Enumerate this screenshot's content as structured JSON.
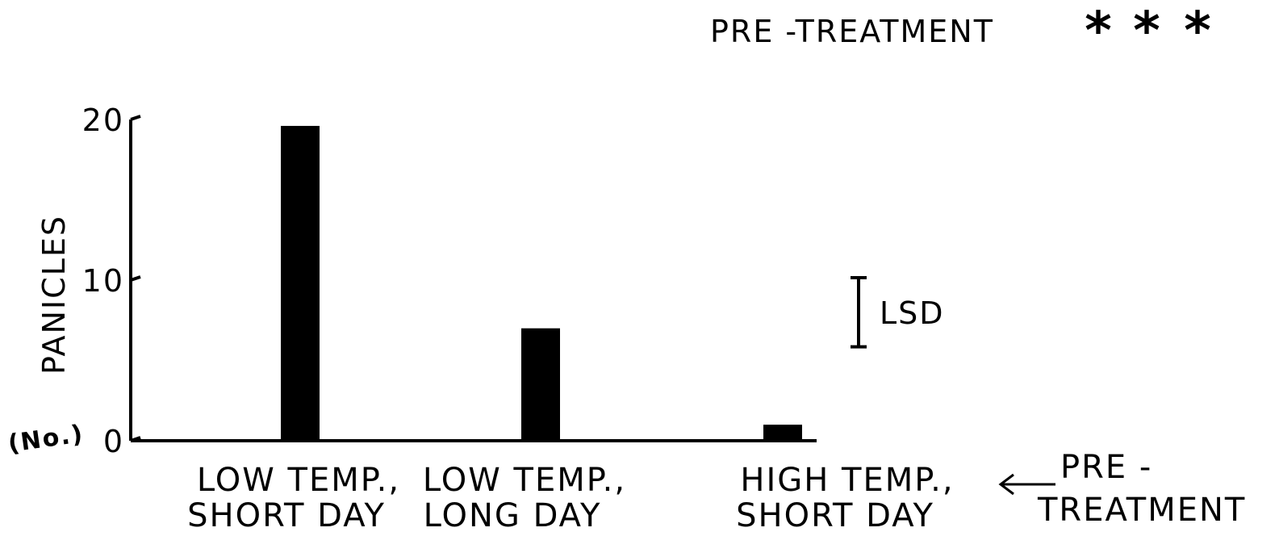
{
  "chart_data": {
    "type": "bar",
    "title": "PRE -TREATMENT",
    "significance": "***",
    "ylabel": "PANICLES",
    "ylabel_unit": "(No.)",
    "yticks": [
      "0",
      "10",
      "20"
    ],
    "ylim": [
      0,
      20
    ],
    "categories": [
      {
        "line1": "LOW  TEMP.,",
        "line2": "SHORT DAY"
      },
      {
        "line1": "LOW  TEMP.,",
        "line2": "LONG  DAY"
      },
      {
        "line1": "HIGH  TEMP.,",
        "line2": "SHORT DAY"
      }
    ],
    "values": [
      19.6,
      7.0,
      1.0
    ],
    "lsd": {
      "label": "LSD",
      "value": 4.3,
      "center": 8.0
    },
    "xaxis_note": {
      "line1": "PRE  -",
      "line2": "TREATMENT"
    },
    "bar_color": "#000000"
  }
}
